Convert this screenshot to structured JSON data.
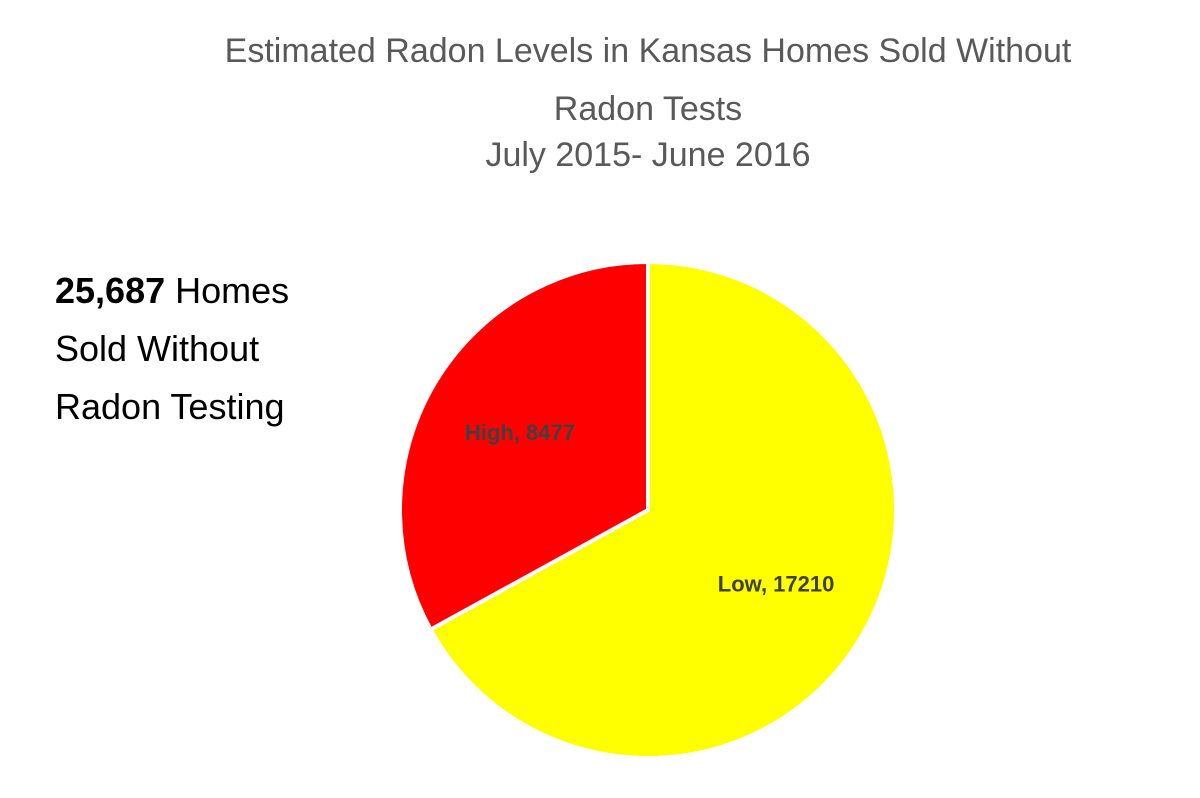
{
  "chart_data": {
    "type": "pie",
    "title": "Estimated Radon Levels in Kansas Homes Sold Without Radon Tests",
    "subtitle": "July 2015- June 2016",
    "annotation": {
      "total": "25,687",
      "text": "Homes Sold Without Radon Testing"
    },
    "categories": [
      "Low",
      "High"
    ],
    "values": [
      17210,
      8477
    ],
    "value_labels": [
      "Low, 17210",
      "High, 8477"
    ],
    "colors": [
      "#ffff00",
      "#ff0000"
    ]
  }
}
